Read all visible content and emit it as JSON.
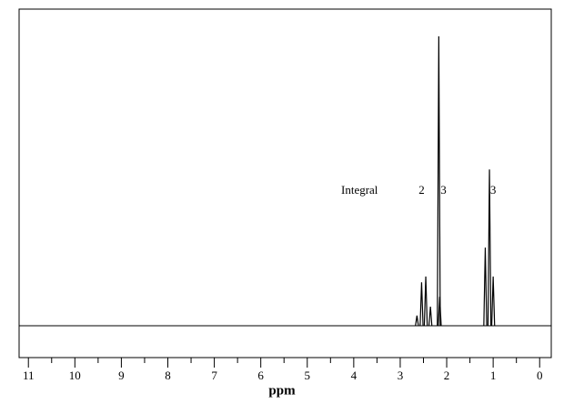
{
  "chart_data": {
    "type": "nmr-spectrum",
    "x_label": "ppm",
    "xlim": [
      11.2,
      -0.25
    ],
    "xticks": [
      11,
      10,
      9,
      8,
      7,
      6,
      5,
      4,
      3,
      2,
      1,
      0
    ],
    "ylim": [
      -11,
      109.4
    ],
    "color": "#000000",
    "peaks": {
      "x": [
        2.64,
        2.54,
        2.45,
        2.35,
        2.17,
        2.15,
        1.17,
        1.08,
        1.0
      ],
      "values": [
        3.5,
        15,
        17,
        6.6,
        100,
        10,
        27,
        54,
        17
      ]
    },
    "integral_label": "Integral",
    "integrals": [
      {
        "value": 2,
        "x": 2.54
      },
      {
        "value": 3,
        "x": 2.07
      },
      {
        "value": 3,
        "x": 1.0
      }
    ]
  }
}
